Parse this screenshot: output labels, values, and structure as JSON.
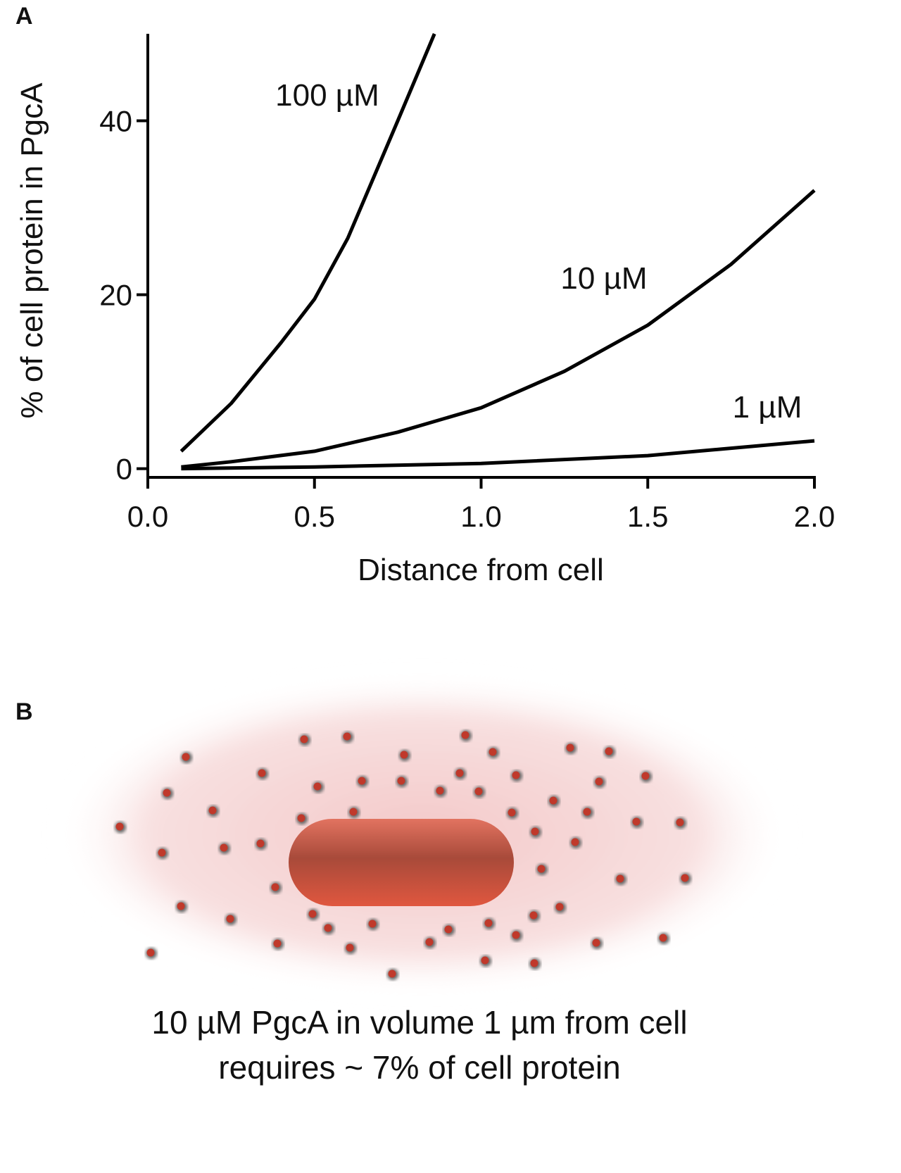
{
  "chart_data": {
    "type": "line",
    "xlabel": "Distance from cell",
    "ylabel": "% of cell protein in PgcA",
    "xlim": [
      0,
      2
    ],
    "ylim": [
      -1,
      50
    ],
    "xticks": [
      {
        "value": 0,
        "label": "0.0"
      },
      {
        "value": 0.5,
        "label": "0.5"
      },
      {
        "value": 1,
        "label": "1.0"
      },
      {
        "value": 1.5,
        "label": "1.5"
      },
      {
        "value": 2,
        "label": "2.0"
      }
    ],
    "yticks": [
      0,
      20,
      40
    ],
    "color": "#000000",
    "series": [
      {
        "name": "100 µM",
        "x": [
          0.1,
          0.25,
          0.4,
          0.5,
          0.6,
          0.75,
          0.86
        ],
        "values": [
          2,
          7.5,
          14.5,
          19.5,
          26.5,
          40,
          50
        ]
      },
      {
        "name": "10 µM",
        "x": [
          0.1,
          0.25,
          0.5,
          0.75,
          1,
          1.25,
          1.5,
          1.75,
          2
        ],
        "values": [
          0.2,
          0.8,
          2,
          4.2,
          7,
          11.2,
          16.5,
          23.5,
          32
        ]
      },
      {
        "name": "1 µM",
        "x": [
          0.1,
          0.5,
          1,
          1.5,
          2
        ],
        "values": [
          0,
          0.2,
          0.6,
          1.5,
          3.2
        ]
      }
    ]
  },
  "panels": {
    "a": "A",
    "b": "B"
  },
  "caption": [
    "10 µM PgcA in volume 1 µm from cell",
    "requires ~ 7% of cell protein"
  ]
}
